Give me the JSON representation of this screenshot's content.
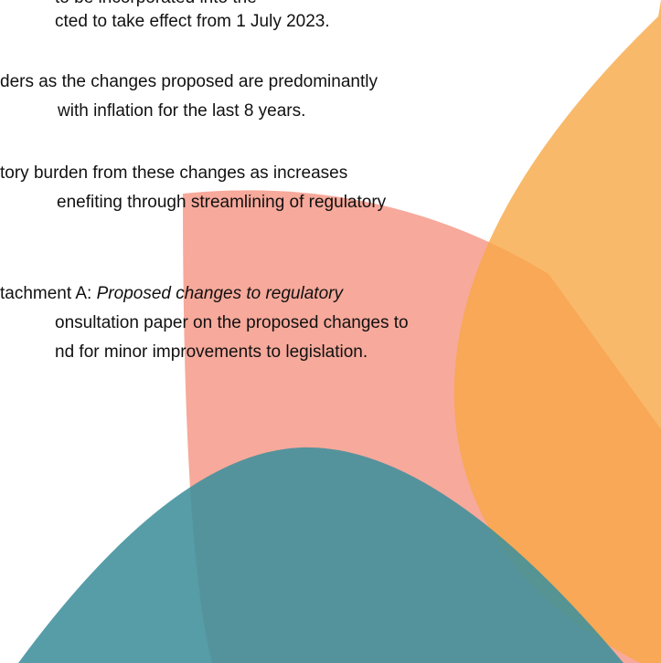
{
  "lines": [
    {
      "text": "to be incorporated into the"
    },
    {
      "text": "cted to take effect from 1 July 2023."
    },
    {
      "text": "ders as the changes proposed are predominantly"
    },
    {
      "text": "with inflation for the last 8 years."
    },
    {
      "text": "tory burden from these changes as increases"
    },
    {
      "text": "enefiting through streamlining of regulatory"
    },
    {
      "text": "tachment A: ",
      "italic": "Proposed changes to regulatory"
    },
    {
      "text": "onsultation paper on the proposed changes to"
    },
    {
      "text": "nd for minor improvements to legislation."
    }
  ]
}
